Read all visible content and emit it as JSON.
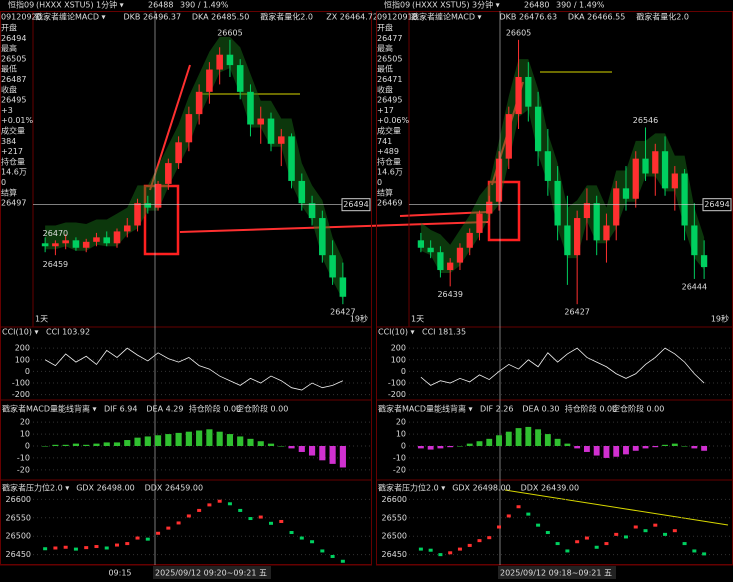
{
  "up_color": "#ff3030",
  "down_color": "#00d060",
  "panels": [
    {
      "ticker": "恒指09",
      "code": "(HXXX XSTU5)",
      "period": "1分钟 ▾",
      "price": 26488,
      "change": "390 / 1.49%",
      "time": "09120920",
      "info": [
        "开盘",
        26494,
        "最高",
        26505,
        "最低",
        26487,
        "收盘",
        26495,
        "+3",
        "+0.01%",
        "成交量",
        384,
        "+217",
        "持仓量",
        "14.6万",
        0,
        "结算",
        26497
      ],
      "main": {
        "header": [
          "戳家者缠论MACD ▾",
          "DKB 26496.37",
          "DKA 26485.50",
          "戳家者量化2.0",
          "ZX 26464.72"
        ],
        "ylim": [
          26415,
          26615
        ],
        "cross": 26494,
        "price_labels": [
          26605,
          26470,
          26459,
          26427
        ],
        "corner_left": "1天",
        "corner_right": "19秒",
        "candles": [
          [
            26468,
            26472,
            26462,
            26466
          ],
          [
            26466,
            26470,
            26460,
            26468
          ],
          [
            26468,
            26474,
            26464,
            26470
          ],
          [
            26470,
            26472,
            26463,
            26465
          ],
          [
            26465,
            26471,
            26462,
            26469
          ],
          [
            26469,
            26475,
            26466,
            26472
          ],
          [
            26472,
            26476,
            26466,
            26468
          ],
          [
            26468,
            26478,
            26465,
            26476
          ],
          [
            26476,
            26485,
            26472,
            26480
          ],
          [
            26480,
            26498,
            26476,
            26495
          ],
          [
            26495,
            26500,
            26488,
            26492
          ],
          [
            26492,
            26510,
            26490,
            26508
          ],
          [
            26508,
            26525,
            26504,
            26522
          ],
          [
            26522,
            26540,
            26518,
            26536
          ],
          [
            26536,
            26560,
            26530,
            26555
          ],
          [
            26555,
            26575,
            26548,
            26570
          ],
          [
            26570,
            26590,
            26562,
            26585
          ],
          [
            26585,
            26600,
            26575,
            26595
          ],
          [
            26595,
            26605,
            26580,
            26588
          ],
          [
            26588,
            26592,
            26565,
            26570
          ],
          [
            26570,
            26575,
            26540,
            26548
          ],
          [
            26548,
            26560,
            26535,
            26552
          ],
          [
            26552,
            26556,
            26530,
            26535
          ],
          [
            26535,
            26545,
            26520,
            26540
          ],
          [
            26540,
            26542,
            26505,
            26510
          ],
          [
            26510,
            26515,
            26490,
            26495
          ],
          [
            26495,
            26500,
            26480,
            26485
          ],
          [
            26485,
            26490,
            26455,
            26460
          ],
          [
            26460,
            26470,
            26440,
            26445
          ],
          [
            26445,
            26455,
            26427,
            26432
          ]
        ]
      },
      "cci": {
        "header": "CCI(10) ▾",
        "value": "CCI 103.92",
        "ylim": [
          -220,
          270
        ],
        "yticks": [
          200,
          100,
          0,
          -100,
          -200
        ],
        "values": [
          100,
          50,
          150,
          80,
          130,
          60,
          180,
          120,
          200,
          140,
          90,
          160,
          110,
          80,
          120,
          50,
          20,
          -40,
          -80,
          -120,
          -60,
          -100,
          -40,
          -80,
          -140,
          -160,
          -100,
          -140,
          -120,
          -80
        ]
      },
      "macd": {
        "header": [
          "戳家者MACD量能线背离 ▾",
          "DIF 6.94",
          "DEA 4.29",
          "持仓阶段 0.00",
          "空仓阶段 0.00"
        ],
        "ylim": [
          -26,
          26
        ],
        "yticks": [
          20,
          10,
          0,
          -10,
          -20
        ],
        "values": [
          0,
          1,
          1,
          2,
          1,
          2,
          3,
          3,
          5,
          7,
          8,
          9,
          10,
          11,
          12,
          13,
          14,
          12,
          10,
          8,
          6,
          4,
          2,
          0,
          -2,
          -5,
          -8,
          -12,
          -15,
          -18
        ]
      },
      "press": {
        "header": [
          "戳家者压力位2.0 ▾",
          "GDX 26498.00",
          "DDX 26459.00"
        ],
        "ylim": [
          26430,
          26620
        ],
        "yticks": [
          26600,
          26550,
          26500,
          26450
        ]
      },
      "time_left": "09:15",
      "date": "2025/09/12 09:20~09:21 五"
    },
    {
      "ticker": "恒指09",
      "code": "(HXXX XSTU5)",
      "period": "3分钟 ▾",
      "price": 26480,
      "change": "390 / 1.49%",
      "time": "09120918",
      "info": [
        "开盘",
        26477,
        "最高",
        26505,
        "最低",
        26471,
        "收盘",
        26495,
        "+17",
        "+0.06%",
        "成交量",
        741,
        "+489",
        "持仓量",
        "14.6万",
        0,
        "结算",
        26469
      ],
      "main": {
        "header": [
          "戳家者缠论MACD ▾",
          "DKB 26476.63",
          "DKA 26466.55",
          "戳家者量化2.0"
        ],
        "ylim": [
          26415,
          26615
        ],
        "cross": 26494,
        "price_labels": [
          26605,
          26546,
          26439,
          26427,
          26444
        ],
        "corner_left": "1天",
        "corner_right": "19秒",
        "candles": [
          [
            26470,
            26475,
            26462,
            26465
          ],
          [
            26465,
            26470,
            26458,
            26462
          ],
          [
            26462,
            26466,
            26445,
            26450
          ],
          [
            26450,
            26458,
            26439,
            26455
          ],
          [
            26455,
            26468,
            26450,
            26465
          ],
          [
            26465,
            26478,
            26460,
            26475
          ],
          [
            26475,
            26490,
            26470,
            26488
          ],
          [
            26488,
            26500,
            26480,
            26496
          ],
          [
            26496,
            26530,
            26490,
            26525
          ],
          [
            26525,
            26560,
            26518,
            26555
          ],
          [
            26555,
            26605,
            26545,
            26580
          ],
          [
            26580,
            26590,
            26550,
            26560
          ],
          [
            26560,
            26570,
            26520,
            26530
          ],
          [
            26530,
            26545,
            26500,
            26510
          ],
          [
            26510,
            26520,
            26470,
            26480
          ],
          [
            26480,
            26500,
            26440,
            26460
          ],
          [
            26460,
            26490,
            26427,
            26485
          ],
          [
            26485,
            26505,
            26470,
            26495
          ],
          [
            26495,
            26500,
            26460,
            26470
          ],
          [
            26470,
            26488,
            26455,
            26480
          ],
          [
            26480,
            26510,
            26470,
            26505
          ],
          [
            26505,
            26520,
            26490,
            26498
          ],
          [
            26498,
            26530,
            26492,
            26525
          ],
          [
            26525,
            26546,
            26510,
            26515
          ],
          [
            26515,
            26535,
            26500,
            26530
          ],
          [
            26530,
            26540,
            26500,
            26505
          ],
          [
            26505,
            26520,
            26490,
            26515
          ],
          [
            26515,
            26518,
            26470,
            26480
          ],
          [
            26480,
            26495,
            26444,
            26460
          ],
          [
            26460,
            26470,
            26444,
            26452
          ]
        ]
      },
      "cci": {
        "header": "CCI(10) ▾",
        "value": "CCI 181.35",
        "ylim": [
          -220,
          270
        ],
        "yticks": [
          200,
          100,
          0,
          -100,
          -200
        ],
        "values": [
          -50,
          -120,
          -80,
          -100,
          -60,
          -90,
          -30,
          -70,
          0,
          60,
          20,
          100,
          40,
          160,
          80,
          150,
          200,
          120,
          80,
          40,
          -20,
          -60,
          -20,
          60,
          120,
          200,
          150,
          80,
          -20,
          -100
        ]
      },
      "macd": {
        "header": [
          "戳家者MACD量能线背离 ▾",
          "DIF 2.26",
          "DEA 0.30",
          "持仓阶段 0.00",
          "空仓阶段 0.00"
        ],
        "ylim": [
          -26,
          26
        ],
        "yticks": [
          20,
          10,
          0,
          -10,
          -20
        ],
        "values": [
          -2,
          -3,
          -2,
          -1,
          0,
          2,
          4,
          6,
          9,
          12,
          15,
          16,
          14,
          10,
          6,
          2,
          -2,
          -5,
          -8,
          -10,
          -9,
          -7,
          -4,
          -2,
          -1,
          1,
          2,
          0,
          -2,
          -4
        ]
      },
      "press": {
        "header": [
          "戳家者压力位2.0 ▾",
          "GDX 26498.00",
          "DDX 26439.00"
        ],
        "ylim": [
          26430,
          26620
        ],
        "yticks": [
          26600,
          26550,
          26500,
          26450
        ]
      },
      "date": "2025/09/12 09:18~09:21 五"
    }
  ]
}
